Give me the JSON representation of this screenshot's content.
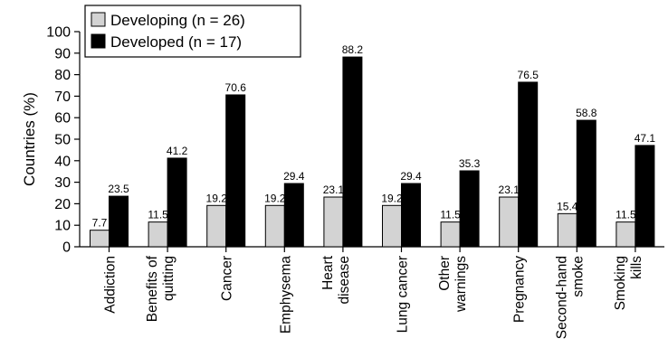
{
  "chart_data": {
    "type": "bar",
    "ylabel": "Countries (%)",
    "ylim": [
      0,
      100
    ],
    "yticks": [
      0,
      10,
      20,
      30,
      40,
      50,
      60,
      70,
      80,
      90,
      100
    ],
    "grid": false,
    "legend_position": "top-left",
    "categories": [
      [
        "Addiction"
      ],
      [
        "Benefits of",
        "quitting"
      ],
      [
        "Cancer"
      ],
      [
        "Emphysema"
      ],
      [
        "Heart",
        "disease"
      ],
      [
        "Lung cancer"
      ],
      [
        "Other",
        "warnings"
      ],
      [
        "Pregnancy"
      ],
      [
        "Second-hand",
        "smoke"
      ],
      [
        "Smoking",
        "kills"
      ]
    ],
    "series": [
      {
        "name": "Developing (n = 26)",
        "color": "#d3d3d3",
        "values": [
          7.7,
          11.5,
          19.2,
          19.2,
          23.1,
          19.2,
          11.5,
          23.1,
          15.4,
          11.5
        ]
      },
      {
        "name": "Developed (n = 17)",
        "color": "#000000",
        "values": [
          23.5,
          41.2,
          70.6,
          29.4,
          88.2,
          29.4,
          35.3,
          76.5,
          58.8,
          47.1
        ]
      }
    ]
  }
}
